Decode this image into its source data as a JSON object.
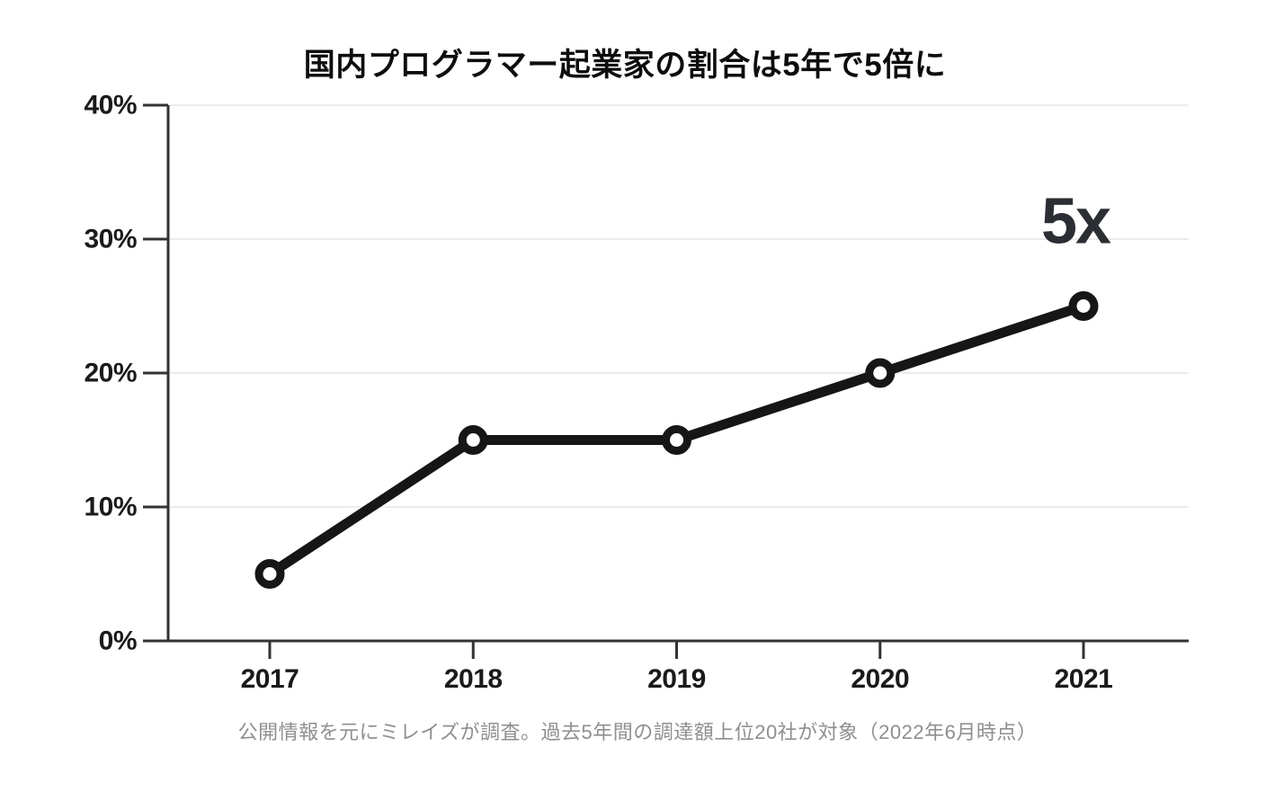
{
  "header": {
    "title": "国内プログラマー起業家の割合は5年で5倍に"
  },
  "footer": {
    "caption": "公開情報を元にミレイズが調査。過去5年間の調達額上位20社が対象（2022年6月時点）"
  },
  "chart_data": {
    "type": "line",
    "title": "国内プログラマー起業家の割合は5年で5倍に",
    "categories": [
      "2017",
      "2018",
      "2019",
      "2020",
      "2021"
    ],
    "series": [
      {
        "name": "国内プログラマー起業家の割合",
        "values": [
          5,
          15,
          15,
          20,
          25
        ]
      }
    ],
    "xlabel": "",
    "ylabel": "",
    "ylim": [
      0,
      40
    ],
    "yticks": [
      0,
      10,
      20,
      30,
      40
    ],
    "ytick_format": "{v}%",
    "grid": true,
    "legend": false,
    "annotation": {
      "text": "5x",
      "x": "2021",
      "y": 29.7
    },
    "caption": "公開情報を元にミレイズが調査。過去5年間の調達額上位20社が対象（2022年6月時点）",
    "colors": {
      "line": "#161616",
      "marker_fill": "#ffffff",
      "axis": "#333333",
      "grid": "#ececec",
      "tick_label": "#1a1a1a",
      "annotation": "#2b2e33",
      "caption": "#8f8f8f",
      "title": "#0d0d0d"
    }
  }
}
